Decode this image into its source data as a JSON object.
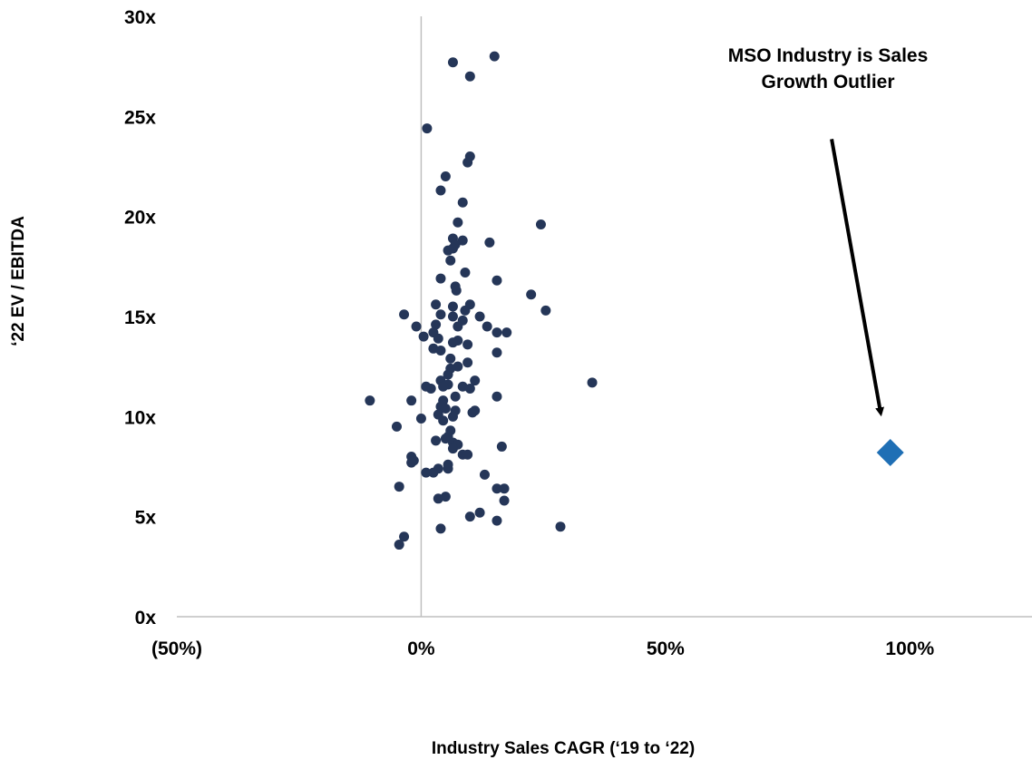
{
  "chart_data": {
    "type": "scatter",
    "title": "",
    "xlabel": "Industry Sales CAGR (‘19 to ‘22)",
    "ylabel": "‘22 EV / EBITDA",
    "xlim": [
      -0.5,
      1.25
    ],
    "ylim": [
      0,
      30
    ],
    "x_ticks": [
      {
        "value": -0.5,
        "label": "(50%)"
      },
      {
        "value": 0,
        "label": "0%"
      },
      {
        "value": 0.5,
        "label": "50%"
      },
      {
        "value": 1.0,
        "label": "100%"
      }
    ],
    "y_ticks": [
      {
        "value": 0,
        "label": "0x"
      },
      {
        "value": 5,
        "label": "5x"
      },
      {
        "value": 10,
        "label": "10x"
      },
      {
        "value": 15,
        "label": "15x"
      },
      {
        "value": 20,
        "label": "20x"
      },
      {
        "value": 25,
        "label": "25x"
      },
      {
        "value": 30,
        "label": "30x"
      }
    ],
    "grid": false,
    "annotation": {
      "lines": [
        "MSO Industry is Sales",
        "Growth Outlier"
      ],
      "arrow_from": {
        "x": 0.84,
        "y": 24.0
      },
      "arrow_to": {
        "x": 0.94,
        "y": 10.0
      }
    },
    "colors": {
      "industries": "#253658",
      "mso": "#1f6fb5",
      "axis": "#bfbfbf"
    },
    "series": [
      {
        "marker": "circle",
        "color": "#253658",
        "points": [
          [
            0.15,
            28.0
          ],
          [
            0.065,
            27.7
          ],
          [
            0.1,
            27.0
          ],
          [
            0.012,
            24.4
          ],
          [
            0.1,
            23.0
          ],
          [
            0.095,
            22.7
          ],
          [
            0.05,
            22.0
          ],
          [
            0.04,
            21.3
          ],
          [
            0.085,
            20.7
          ],
          [
            0.075,
            19.7
          ],
          [
            0.245,
            19.6
          ],
          [
            0.065,
            18.9
          ],
          [
            0.085,
            18.8
          ],
          [
            0.07,
            18.6
          ],
          [
            0.14,
            18.7
          ],
          [
            0.055,
            18.3
          ],
          [
            0.065,
            18.4
          ],
          [
            0.06,
            17.8
          ],
          [
            0.09,
            17.2
          ],
          [
            0.04,
            16.9
          ],
          [
            0.155,
            16.8
          ],
          [
            0.07,
            16.5
          ],
          [
            0.072,
            16.3
          ],
          [
            0.225,
            16.1
          ],
          [
            0.03,
            15.6
          ],
          [
            0.065,
            15.5
          ],
          [
            0.1,
            15.6
          ],
          [
            0.09,
            15.3
          ],
          [
            0.255,
            15.3
          ],
          [
            -0.035,
            15.1
          ],
          [
            0.04,
            15.1
          ],
          [
            0.065,
            15.0
          ],
          [
            0.12,
            15.0
          ],
          [
            0.085,
            14.8
          ],
          [
            0.03,
            14.6
          ],
          [
            0.075,
            14.5
          ],
          [
            0.135,
            14.5
          ],
          [
            -0.01,
            14.5
          ],
          [
            0.025,
            14.2
          ],
          [
            0.155,
            14.2
          ],
          [
            0.175,
            14.2
          ],
          [
            0.005,
            14.0
          ],
          [
            0.035,
            13.9
          ],
          [
            0.075,
            13.8
          ],
          [
            0.065,
            13.7
          ],
          [
            0.095,
            13.6
          ],
          [
            0.025,
            13.4
          ],
          [
            0.04,
            13.3
          ],
          [
            0.155,
            13.2
          ],
          [
            0.06,
            12.9
          ],
          [
            0.075,
            12.5
          ],
          [
            0.095,
            12.7
          ],
          [
            0.06,
            12.4
          ],
          [
            0.055,
            12.1
          ],
          [
            0.11,
            11.8
          ],
          [
            0.04,
            11.8
          ],
          [
            0.35,
            11.7
          ],
          [
            0.055,
            11.6
          ],
          [
            0.085,
            11.5
          ],
          [
            0.01,
            11.5
          ],
          [
            0.02,
            11.4
          ],
          [
            0.045,
            11.5
          ],
          [
            0.1,
            11.4
          ],
          [
            0.07,
            11.0
          ],
          [
            0.155,
            11.0
          ],
          [
            -0.105,
            10.8
          ],
          [
            -0.02,
            10.8
          ],
          [
            0.045,
            10.8
          ],
          [
            0.04,
            10.5
          ],
          [
            0.05,
            10.4
          ],
          [
            0.07,
            10.3
          ],
          [
            0.11,
            10.3
          ],
          [
            0.105,
            10.2
          ],
          [
            0.035,
            10.1
          ],
          [
            0.065,
            10.0
          ],
          [
            0.045,
            9.8
          ],
          [
            0.0,
            9.9
          ],
          [
            -0.05,
            9.5
          ],
          [
            0.06,
            9.3
          ],
          [
            0.055,
            9.0
          ],
          [
            0.05,
            8.9
          ],
          [
            0.03,
            8.8
          ],
          [
            0.065,
            8.7
          ],
          [
            0.075,
            8.6
          ],
          [
            0.165,
            8.5
          ],
          [
            0.065,
            8.4
          ],
          [
            0.085,
            8.1
          ],
          [
            0.095,
            8.1
          ],
          [
            -0.02,
            8.0
          ],
          [
            -0.015,
            7.8
          ],
          [
            -0.02,
            7.7
          ],
          [
            0.055,
            7.6
          ],
          [
            0.035,
            7.4
          ],
          [
            0.055,
            7.4
          ],
          [
            0.025,
            7.2
          ],
          [
            0.01,
            7.2
          ],
          [
            0.13,
            7.1
          ],
          [
            -0.045,
            6.5
          ],
          [
            0.17,
            6.4
          ],
          [
            0.155,
            6.4
          ],
          [
            0.05,
            6.0
          ],
          [
            0.035,
            5.9
          ],
          [
            0.17,
            5.8
          ],
          [
            0.12,
            5.2
          ],
          [
            0.1,
            5.0
          ],
          [
            0.155,
            4.8
          ],
          [
            0.04,
            4.4
          ],
          [
            0.285,
            4.5
          ],
          [
            -0.035,
            4.0
          ],
          [
            -0.045,
            3.6
          ]
        ]
      },
      {
        "marker": "diamond",
        "color": "#1f6fb5",
        "points": [
          [
            0.96,
            8.2
          ]
        ]
      }
    ]
  }
}
